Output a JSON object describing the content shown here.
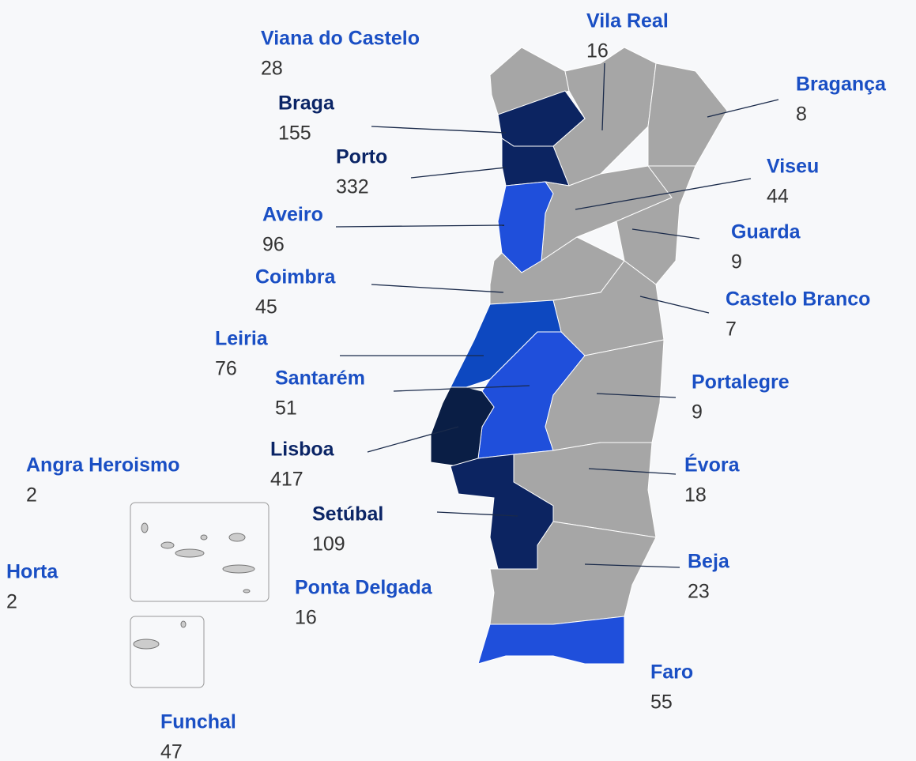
{
  "districts": [
    {
      "name": "Viana do Castelo",
      "value": 28,
      "color": "#a6a6a6",
      "label_color": "#1a4fc4"
    },
    {
      "name": "Vila Real",
      "value": 16,
      "color": "#a6a6a6",
      "label_color": "#1a4fc4"
    },
    {
      "name": "Bragança",
      "value": 8,
      "color": "#a6a6a6",
      "label_color": "#1a4fc4"
    },
    {
      "name": "Braga",
      "value": 155,
      "color": "#0c2461",
      "label_color": "#0b2566"
    },
    {
      "name": "Porto",
      "value": 332,
      "color": "#0c2461",
      "label_color": "#0b2566"
    },
    {
      "name": "Viseu",
      "value": 44,
      "color": "#a6a6a6",
      "label_color": "#1a4fc4"
    },
    {
      "name": "Guarda",
      "value": 9,
      "color": "#a6a6a6",
      "label_color": "#1a4fc4"
    },
    {
      "name": "Aveiro",
      "value": 96,
      "color": "#1f4fdb",
      "label_color": "#1a4fc4"
    },
    {
      "name": "Coimbra",
      "value": 45,
      "color": "#a6a6a6",
      "label_color": "#1a4fc4"
    },
    {
      "name": "Castelo Branco",
      "value": 7,
      "color": "#a6a6a6",
      "label_color": "#1a4fc4"
    },
    {
      "name": "Leiria",
      "value": 76,
      "color": "#0d48c0",
      "label_color": "#1a4fc4"
    },
    {
      "name": "Santarém",
      "value": 51,
      "color": "#1f4fdb",
      "label_color": "#1a4fc4"
    },
    {
      "name": "Portalegre",
      "value": 9,
      "color": "#a6a6a6",
      "label_color": "#1a4fc4"
    },
    {
      "name": "Lisboa",
      "value": 417,
      "color": "#0a1e45",
      "label_color": "#0b2566"
    },
    {
      "name": "Angra Heroismo",
      "value": 2,
      "color": "#c8c8c8",
      "label_color": "#1a4fc4"
    },
    {
      "name": "Évora",
      "value": 18,
      "color": "#a6a6a6",
      "label_color": "#1a4fc4"
    },
    {
      "name": "Setúbal",
      "value": 109,
      "color": "#0c2461",
      "label_color": "#0b2566"
    },
    {
      "name": "Horta",
      "value": 2,
      "color": "#c8c8c8",
      "label_color": "#1a4fc4"
    },
    {
      "name": "Beja",
      "value": 23,
      "color": "#a6a6a6",
      "label_color": "#1a4fc4"
    },
    {
      "name": "Ponta Delgada",
      "value": 16,
      "color": "#c8c8c8",
      "label_color": "#1a4fc4"
    },
    {
      "name": "Faro",
      "value": 55,
      "color": "#1f4fdb",
      "label_color": "#1a4fc4"
    },
    {
      "name": "Funchal",
      "value": 47,
      "color": "#c8c8c8",
      "label_color": "#1a4fc4"
    }
  ]
}
